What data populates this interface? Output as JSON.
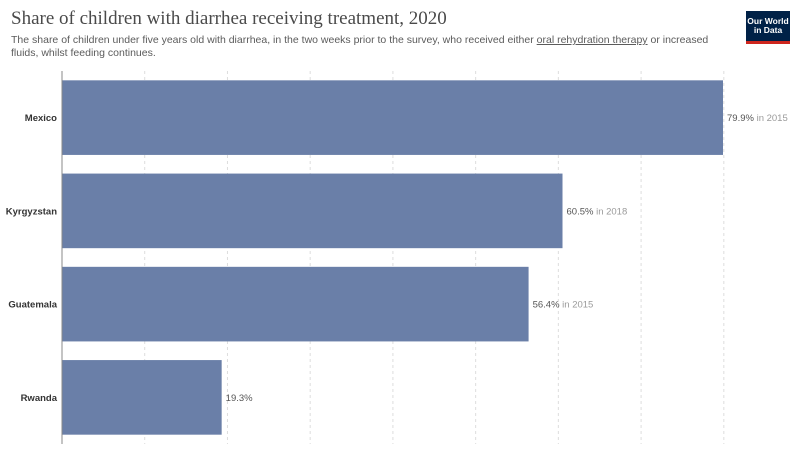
{
  "header": {
    "title": "Share of children with diarrhea receiving treatment, 2020",
    "subtitle_before": "The share of children under five years old with diarrhea, in the two weeks prior to the survey, who received either ",
    "subtitle_link": "oral rehydration therapy",
    "subtitle_after": " or increased fluids, whilst feeding continues."
  },
  "logo": {
    "line1": "Our World",
    "line2": "in Data"
  },
  "colors": {
    "bar": "#6a7fa8",
    "grid": "#dddddd",
    "axis": "#888888"
  },
  "chart_data": {
    "type": "bar",
    "orientation": "horizontal",
    "categories": [
      "Mexico",
      "Kyrgyzstan",
      "Guatemala",
      "Rwanda"
    ],
    "values": [
      79.9,
      60.5,
      56.4,
      19.3
    ],
    "value_labels": [
      "79.9%",
      "60.5%",
      "56.4%",
      "19.3%"
    ],
    "year_notes": [
      "in 2015",
      "in 2018",
      "in 2015",
      ""
    ],
    "xlim": [
      0,
      80
    ],
    "grid": true
  }
}
